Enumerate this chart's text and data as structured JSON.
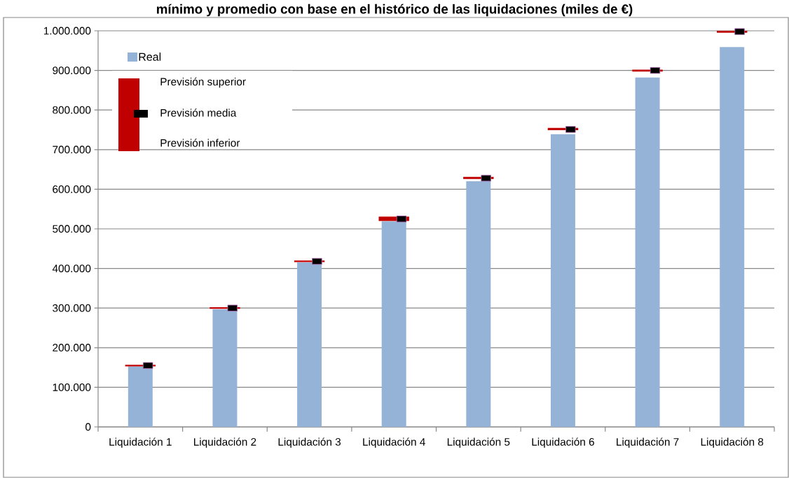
{
  "chart_data": {
    "type": "bar",
    "title": "mínimo y promedio con base en el histórico de las liquidaciones (miles de €)",
    "categories": [
      "Liquidación 1",
      "Liquidación 2",
      "Liquidación 3",
      "Liquidación 4",
      "Liquidación 5",
      "Liquidación 6",
      "Liquidación 7",
      "Liquidación 8"
    ],
    "series": [
      {
        "name": "Real",
        "color": "#95b3d7",
        "values": [
          153000,
          297000,
          415000,
          519000,
          620000,
          739000,
          882000,
          959000
        ]
      },
      {
        "color": "#c00000",
        "base": [
          153000,
          298000,
          416000,
          520000,
          626000,
          749000,
          897000,
          995000
        ],
        "values": [
          4000,
          4000,
          4000,
          11000,
          5000,
          6000,
          5000,
          5000
        ]
      },
      {
        "name": "Previsión media",
        "type": "scatter",
        "marker": "square",
        "color": "#000000",
        "values": [
          155000,
          300000,
          418000,
          525000,
          628000,
          751000,
          900000,
          998000
        ]
      }
    ],
    "annotations": [
      "Previsión superior",
      "Previsión inferior"
    ],
    "ylim": [
      0,
      1000000
    ],
    "yticks": [
      {
        "value": 0,
        "label": "0"
      },
      {
        "value": 100000,
        "label": "100.000"
      },
      {
        "value": 200000,
        "label": "200.000"
      },
      {
        "value": 300000,
        "label": "300.000"
      },
      {
        "value": 400000,
        "label": "400.000"
      },
      {
        "value": 500000,
        "label": "500.000"
      },
      {
        "value": 600000,
        "label": "600.000"
      },
      {
        "value": 700000,
        "label": "700.000"
      },
      {
        "value": 800000,
        "label": "800.000"
      },
      {
        "value": 900000,
        "label": "900.000"
      },
      {
        "value": 1000000,
        "label": "1.000.000"
      }
    ],
    "grid": "y",
    "legend": "top left"
  }
}
